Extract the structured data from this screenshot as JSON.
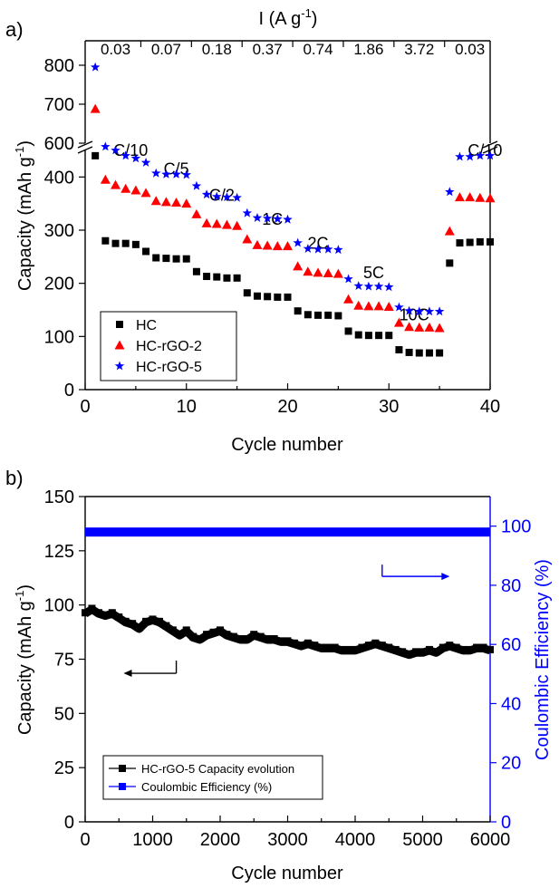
{
  "colors": {
    "hc": "#000000",
    "hc_rgo_2": "#ff0000",
    "hc_rgo_5": "#0000ff",
    "ce": "#0000ff"
  },
  "chart_data": [
    {
      "panel_label": "a)",
      "type": "scatter",
      "top_axis_title_prefix": "I (A g",
      "top_axis_title_sup": "-1",
      "top_axis_title_suffix": ")",
      "top_labels": [
        {
          "x": 3,
          "label": "0.03"
        },
        {
          "x": 8,
          "label": "0.07"
        },
        {
          "x": 13,
          "label": "0.18"
        },
        {
          "x": 18,
          "label": "0.37"
        },
        {
          "x": 23,
          "label": "0.74"
        },
        {
          "x": 28,
          "label": "1.86"
        },
        {
          "x": 33,
          "label": "3.72"
        },
        {
          "x": 38,
          "label": "0.03"
        }
      ],
      "xlabel": "Cycle number",
      "ylabel_prefix": "Capacity (mAh g",
      "ylabel_sup": "-1",
      "ylabel_suffix": ")",
      "xlim": [
        0,
        40
      ],
      "ylim_lower": [
        0,
        450
      ],
      "ylim_upper": [
        600,
        800
      ],
      "x_ticks": [
        0,
        10,
        20,
        30,
        40
      ],
      "y_ticks_lower": [
        0,
        100,
        200,
        300,
        400
      ],
      "y_ticks_upper": [
        600,
        700,
        800
      ],
      "rate_labels": [
        {
          "x": 4.5,
          "y": 440,
          "label": "C/10"
        },
        {
          "x": 9,
          "y": 405,
          "label": "C/5"
        },
        {
          "x": 13.5,
          "y": 355,
          "label": "C/2"
        },
        {
          "x": 18.5,
          "y": 310,
          "label": "1C"
        },
        {
          "x": 23,
          "y": 265,
          "label": "2C"
        },
        {
          "x": 28.5,
          "y": 210,
          "label": "5C"
        },
        {
          "x": 32.5,
          "y": 130,
          "label": "10C"
        },
        {
          "x": 39.5,
          "y": 440,
          "label": "C/10"
        }
      ],
      "legend_position": "bottom-left",
      "series": [
        {
          "name": "HC",
          "marker": "square",
          "color": "#000000",
          "points": [
            [
              1,
              440
            ],
            [
              2,
              280
            ],
            [
              3,
              275
            ],
            [
              4,
              275
            ],
            [
              5,
              273
            ],
            [
              6,
              260
            ],
            [
              7,
              248
            ],
            [
              8,
              247
            ],
            [
              9,
              246
            ],
            [
              10,
              246
            ],
            [
              11,
              222
            ],
            [
              12,
              213
            ],
            [
              13,
              212
            ],
            [
              14,
              210
            ],
            [
              15,
              210
            ],
            [
              16,
              182
            ],
            [
              17,
              176
            ],
            [
              18,
              175
            ],
            [
              19,
              174
            ],
            [
              20,
              174
            ],
            [
              21,
              148
            ],
            [
              22,
              141
            ],
            [
              23,
              140
            ],
            [
              24,
              140
            ],
            [
              25,
              139
            ],
            [
              26,
              110
            ],
            [
              27,
              103
            ],
            [
              28,
              102
            ],
            [
              29,
              102
            ],
            [
              30,
              102
            ],
            [
              31,
              75
            ],
            [
              32,
              70
            ],
            [
              33,
              69
            ],
            [
              34,
              69
            ],
            [
              35,
              69
            ],
            [
              36,
              238
            ],
            [
              37,
              276
            ],
            [
              38,
              277
            ],
            [
              39,
              278
            ],
            [
              40,
              278
            ]
          ]
        },
        {
          "name": "HC-rGO-2",
          "marker": "triangle",
          "color": "#ff0000",
          "points": [
            [
              1,
              688
            ],
            [
              2,
              395
            ],
            [
              3,
              385
            ],
            [
              4,
              378
            ],
            [
              5,
              375
            ],
            [
              6,
              370
            ],
            [
              7,
              355
            ],
            [
              8,
              353
            ],
            [
              9,
              352
            ],
            [
              10,
              350
            ],
            [
              11,
              330
            ],
            [
              12,
              313
            ],
            [
              13,
              312
            ],
            [
              14,
              310
            ],
            [
              15,
              308
            ],
            [
              16,
              283
            ],
            [
              17,
              272
            ],
            [
              18,
              271
            ],
            [
              19,
              270
            ],
            [
              20,
              270
            ],
            [
              21,
              232
            ],
            [
              22,
              222
            ],
            [
              23,
              220
            ],
            [
              24,
              219
            ],
            [
              25,
              218
            ],
            [
              26,
              170
            ],
            [
              27,
              158
            ],
            [
              28,
              157
            ],
            [
              29,
              157
            ],
            [
              30,
              156
            ],
            [
              31,
              126
            ],
            [
              32,
              118
            ],
            [
              33,
              117
            ],
            [
              34,
              117
            ],
            [
              35,
              116
            ],
            [
              36,
              298
            ],
            [
              37,
              362
            ],
            [
              38,
              362
            ],
            [
              39,
              361
            ],
            [
              40,
              360
            ]
          ]
        },
        {
          "name": "HC-rGO-5",
          "marker": "star",
          "color": "#0000ff",
          "points": [
            [
              1,
              795
            ],
            [
              2,
              457
            ],
            [
              3,
              450
            ],
            [
              4,
              440
            ],
            [
              5,
              435
            ],
            [
              6,
              427
            ],
            [
              7,
              407
            ],
            [
              8,
              405
            ],
            [
              9,
              405
            ],
            [
              10,
              404
            ],
            [
              11,
              383
            ],
            [
              12,
              367
            ],
            [
              13,
              363
            ],
            [
              14,
              362
            ],
            [
              15,
              361
            ],
            [
              16,
              332
            ],
            [
              17,
              323
            ],
            [
              18,
              322
            ],
            [
              19,
              321
            ],
            [
              20,
              320
            ],
            [
              21,
              276
            ],
            [
              22,
              265
            ],
            [
              23,
              264
            ],
            [
              24,
              264
            ],
            [
              25,
              263
            ],
            [
              26,
              208
            ],
            [
              27,
              195
            ],
            [
              28,
              194
            ],
            [
              29,
              194
            ],
            [
              30,
              193
            ],
            [
              31,
              155
            ],
            [
              32,
              148
            ],
            [
              33,
              147
            ],
            [
              34,
              147
            ],
            [
              35,
              147
            ],
            [
              36,
              372
            ],
            [
              37,
              438
            ],
            [
              38,
              438
            ],
            [
              39,
              440
            ],
            [
              40,
              440
            ]
          ]
        }
      ]
    },
    {
      "panel_label": "b)",
      "type": "line",
      "xlabel": "Cycle number",
      "ylabel_prefix": "Capacity (mAh g",
      "ylabel_sup": "-1",
      "ylabel_suffix": ")",
      "ylabel_right": "Coulombic Efficiency (%)",
      "xlim": [
        0,
        6000
      ],
      "ylim_left": [
        0,
        150
      ],
      "ylim_right": [
        0,
        110
      ],
      "x_ticks": [
        0,
        1000,
        2000,
        3000,
        4000,
        5000,
        6000
      ],
      "y_ticks_left": [
        0,
        25,
        50,
        75,
        100,
        125,
        150
      ],
      "y_ticks_right": [
        0,
        20,
        40,
        60,
        80,
        100
      ],
      "legend_position": "bottom-left",
      "capacity_arrow": {
        "x_start": 1350,
        "x_end": 570,
        "y": 68.5,
        "note": "points to left axis"
      },
      "ce_arrow": {
        "x_start": 4400,
        "x_end": 5400,
        "y": 83,
        "note": "points to right axis"
      },
      "series": [
        {
          "name": "HC-rGO-5 Capacity evolution",
          "axis": "left",
          "color": "#000000",
          "points": [
            [
              0,
              96
            ],
            [
              100,
              98
            ],
            [
              200,
              96
            ],
            [
              300,
              95
            ],
            [
              400,
              96
            ],
            [
              500,
              94
            ],
            [
              600,
              92
            ],
            [
              700,
              91
            ],
            [
              800,
              89
            ],
            [
              900,
              92
            ],
            [
              1000,
              93
            ],
            [
              1100,
              92
            ],
            [
              1200,
              90
            ],
            [
              1300,
              88
            ],
            [
              1400,
              86
            ],
            [
              1500,
              88
            ],
            [
              1600,
              85
            ],
            [
              1700,
              84
            ],
            [
              1800,
              86
            ],
            [
              1900,
              87
            ],
            [
              2000,
              88
            ],
            [
              2100,
              86
            ],
            [
              2200,
              85
            ],
            [
              2300,
              84
            ],
            [
              2400,
              84
            ],
            [
              2500,
              86
            ],
            [
              2600,
              85
            ],
            [
              2700,
              84
            ],
            [
              2800,
              84
            ],
            [
              2900,
              83
            ],
            [
              3000,
              83
            ],
            [
              3100,
              82
            ],
            [
              3200,
              81
            ],
            [
              3300,
              82
            ],
            [
              3400,
              81
            ],
            [
              3500,
              80
            ],
            [
              3600,
              80
            ],
            [
              3700,
              80
            ],
            [
              3800,
              79
            ],
            [
              3900,
              79
            ],
            [
              4000,
              79
            ],
            [
              4100,
              80
            ],
            [
              4200,
              81
            ],
            [
              4300,
              82
            ],
            [
              4400,
              81
            ],
            [
              4500,
              80
            ],
            [
              4600,
              79
            ],
            [
              4700,
              78
            ],
            [
              4800,
              77
            ],
            [
              4900,
              78
            ],
            [
              5000,
              78
            ],
            [
              5100,
              79
            ],
            [
              5200,
              78
            ],
            [
              5300,
              80
            ],
            [
              5400,
              81
            ],
            [
              5500,
              80
            ],
            [
              5600,
              79
            ],
            [
              5700,
              79
            ],
            [
              5800,
              80
            ],
            [
              5900,
              80
            ],
            [
              6000,
              79
            ]
          ]
        },
        {
          "name": "Coulombic Efficiency (%)",
          "axis": "right",
          "color": "#0000ff",
          "points": [
            [
              0,
              98
            ],
            [
              6000,
              98
            ]
          ]
        }
      ]
    }
  ]
}
